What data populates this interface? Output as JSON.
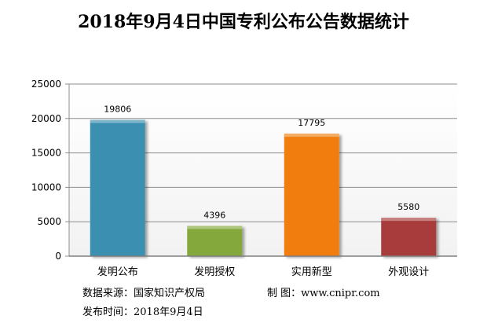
{
  "chart_data": {
    "type": "bar",
    "title": "2018年9月4日中国专利公布公告数据统计",
    "categories": [
      "发明公布",
      "发明授权",
      "实用新型",
      "外观设计"
    ],
    "values": [
      19806,
      4396,
      17795,
      5580
    ],
    "colors": [
      "#3a8fb0",
      "#84a83a",
      "#f07d10",
      "#a83a3a"
    ],
    "ylim": [
      0,
      25000
    ],
    "yticks": [
      0,
      5000,
      10000,
      15000,
      20000,
      25000
    ],
    "grid": true,
    "xlabel": "",
    "ylabel": ""
  },
  "footer": {
    "source_label": "数据来源：",
    "source_value": "国家知识产权局",
    "maker_label": "制  图：",
    "maker_value": "www.cnipr.com",
    "date_label": "发布时间：",
    "date_value": "2018年9月4日"
  }
}
